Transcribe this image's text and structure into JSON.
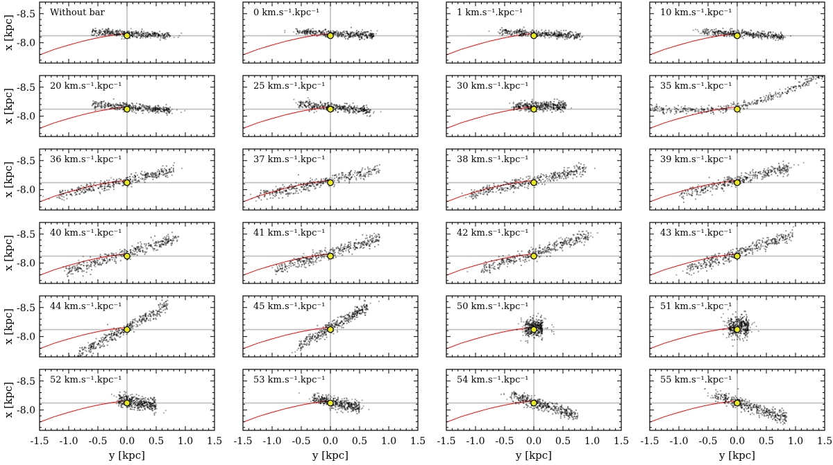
{
  "chart_data": {
    "type": "scatter",
    "layout": {
      "rows": 6,
      "cols": 4
    },
    "xlabel": "y [kpc]",
    "ylabel": "x [kpc]",
    "xlim": [
      -1.5,
      1.5
    ],
    "ylim": [
      -7.65,
      -8.7
    ],
    "xticks": [
      -1.5,
      -1.0,
      -0.5,
      0.0,
      0.5,
      1.0,
      1.5
    ],
    "xtick_labels": [
      "-1.5",
      "-1.0",
      "-0.5",
      "0.0",
      "0.5",
      "1.0",
      "1.5"
    ],
    "yticks": [
      -8.5,
      -8.0
    ],
    "ytick_labels": [
      "-8.5",
      "-8.0"
    ],
    "grid": false,
    "reference_lines": {
      "x": 0.0,
      "y": -8.12
    },
    "sun_marker": {
      "x": 0.0,
      "y": -8.12,
      "color": "#e8e820"
    },
    "point_color": "#000000",
    "orbit_color": "#ff0000",
    "orbit_curve": {
      "x": [
        -1.5,
        -1.25,
        -1.0,
        -0.75,
        -0.5,
        -0.25,
        0.0
      ],
      "y": [
        -7.79,
        -7.885,
        -7.96,
        -8.03,
        -8.085,
        -8.13,
        -8.16
      ]
    },
    "panels": [
      {
        "label": "Without bar",
        "trend": {
          "y0": -8.16,
          "slope": 0.05,
          "xmin": -0.6,
          "xmax": 0.75,
          "thickness": 0.03
        }
      },
      {
        "label": "0 km.s⁻¹.kpc⁻¹",
        "trend": {
          "y0": -8.16,
          "slope": 0.05,
          "xmin": -0.6,
          "xmax": 0.75,
          "thickness": 0.03
        }
      },
      {
        "label": "1 km.s⁻¹.kpc⁻¹",
        "trend": {
          "y0": -8.16,
          "slope": 0.05,
          "xmin": -0.6,
          "xmax": 0.8,
          "thickness": 0.03
        }
      },
      {
        "label": "10 km.s⁻¹.kpc⁻¹",
        "trend": {
          "y0": -8.16,
          "slope": 0.06,
          "xmin": -0.6,
          "xmax": 0.8,
          "thickness": 0.03
        }
      },
      {
        "label": "20 km.s⁻¹.kpc⁻¹",
        "trend": {
          "y0": -8.16,
          "slope": 0.08,
          "xmin": -0.6,
          "xmax": 0.75,
          "thickness": 0.035
        }
      },
      {
        "label": "25 km.s⁻¹.kpc⁻¹",
        "trend": {
          "y0": -8.16,
          "slope": 0.1,
          "xmin": -0.55,
          "xmax": 0.7,
          "thickness": 0.035
        }
      },
      {
        "label": "30 km.s⁻¹.kpc⁻¹",
        "trend": {
          "y0": -8.17,
          "slope": 0.0,
          "xmin": -0.35,
          "xmax": 0.55,
          "thickness": 0.04
        }
      },
      {
        "label": "35 km.s⁻¹.kpc⁻¹",
        "trend": {
          "y0": -8.17,
          "slope": -0.2,
          "xmin": -1.5,
          "xmax": 1.5,
          "thickness": 0.035,
          "curv": -0.12
        }
      },
      {
        "label": "36 km.s⁻¹.kpc⁻¹",
        "trend": {
          "y0": -8.16,
          "slope": -0.22,
          "xmin": -1.2,
          "xmax": 0.8,
          "thickness": 0.045
        }
      },
      {
        "label": "37 km.s⁻¹.kpc⁻¹",
        "trend": {
          "y0": -8.16,
          "slope": -0.22,
          "xmin": -1.25,
          "xmax": 0.85,
          "thickness": 0.045
        }
      },
      {
        "label": "38 km.s⁻¹.kpc⁻¹",
        "trend": {
          "y0": -8.16,
          "slope": -0.22,
          "xmin": -1.1,
          "xmax": 0.9,
          "thickness": 0.045
        }
      },
      {
        "label": "39 km.s⁻¹.kpc⁻¹",
        "trend": {
          "y0": -8.16,
          "slope": -0.25,
          "xmin": -1.0,
          "xmax": 0.9,
          "thickness": 0.05
        }
      },
      {
        "label": "40 km.s⁻¹.kpc⁻¹",
        "trend": {
          "y0": -8.17,
          "slope": -0.3,
          "xmin": -1.05,
          "xmax": 0.9,
          "thickness": 0.05
        }
      },
      {
        "label": "41 km.s⁻¹.kpc⁻¹",
        "trend": {
          "y0": -8.17,
          "slope": -0.3,
          "xmin": -0.95,
          "xmax": 0.85,
          "thickness": 0.05
        }
      },
      {
        "label": "42 km.s⁻¹.kpc⁻¹",
        "trend": {
          "y0": -8.17,
          "slope": -0.32,
          "xmin": -0.9,
          "xmax": 0.95,
          "thickness": 0.05
        }
      },
      {
        "label": "43 km.s⁻¹.kpc⁻¹",
        "trend": {
          "y0": -8.17,
          "slope": -0.33,
          "xmin": -0.9,
          "xmax": 0.95,
          "thickness": 0.05
        }
      },
      {
        "label": "44 km.s⁻¹.kpc⁻¹",
        "trend": {
          "y0": -8.15,
          "slope": -0.55,
          "xmin": -0.85,
          "xmax": 0.7,
          "thickness": 0.05
        }
      },
      {
        "label": "45 km.s⁻¹.kpc⁻¹",
        "trend": {
          "y0": -8.15,
          "slope": -0.58,
          "xmin": -0.55,
          "xmax": 0.65,
          "thickness": 0.05
        }
      },
      {
        "label": "50 km.s⁻¹.kpc⁻¹",
        "trend": {
          "y0": -8.16,
          "slope": 0.0,
          "xmin": -0.15,
          "xmax": 0.15,
          "thickness": 0.08
        }
      },
      {
        "label": "51 km.s⁻¹.kpc⁻¹",
        "trend": {
          "y0": -8.16,
          "slope": 0.0,
          "xmin": -0.15,
          "xmax": 0.2,
          "thickness": 0.09
        }
      },
      {
        "label": "52 km.s⁻¹.kpc⁻¹",
        "trend": {
          "y0": -8.15,
          "slope": 0.15,
          "xmin": -0.15,
          "xmax": 0.5,
          "thickness": 0.06
        }
      },
      {
        "label": "53 km.s⁻¹.kpc⁻¹",
        "trend": {
          "y0": -8.14,
          "slope": 0.2,
          "xmin": -0.3,
          "xmax": 0.5,
          "thickness": 0.05
        }
      },
      {
        "label": "54 km.s⁻¹.kpc⁻¹",
        "trend": {
          "y0": -8.13,
          "slope": 0.3,
          "xmin": -0.4,
          "xmax": 0.75,
          "thickness": 0.05
        }
      },
      {
        "label": "55 km.s⁻¹.kpc⁻¹",
        "trend": {
          "y0": -8.13,
          "slope": 0.32,
          "xmin": -0.4,
          "xmax": 0.85,
          "thickness": 0.05
        }
      }
    ]
  }
}
